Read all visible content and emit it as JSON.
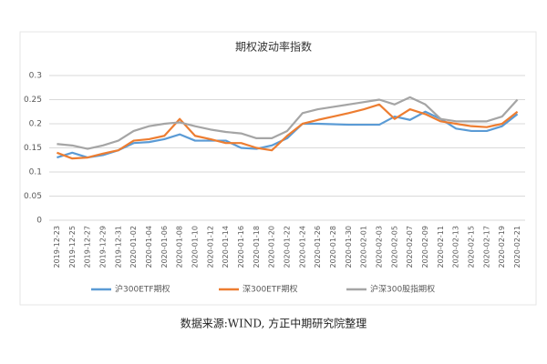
{
  "chart_data": {
    "type": "line",
    "title": "期权波动率指数",
    "categories": [
      "2019-12-23",
      "2019-12-25",
      "2019-12-27",
      "2019-12-29",
      "2019-12-31",
      "2020-01-02",
      "2020-01-04",
      "2020-01-06",
      "2020-01-08",
      "2020-01-10",
      "2020-01-12",
      "2020-01-14",
      "2020-01-16",
      "2020-01-18",
      "2020-01-20",
      "2020-01-22",
      "2020-01-24",
      "2020-01-26",
      "2020-01-28",
      "2020-01-30",
      "2020-02-01",
      "2020-02-03",
      "2020-02-05",
      "2020-02-07",
      "2020-02-09",
      "2020-02-11",
      "2020-02-13",
      "2020-02-15",
      "2020-02-17",
      "2020-02-19",
      "2020-02-21"
    ],
    "series": [
      {
        "name": "沪300ETF期权",
        "color": "#5b9bd5",
        "values": [
          0.13,
          0.14,
          0.13,
          0.135,
          0.145,
          0.16,
          0.162,
          0.168,
          0.178,
          0.165,
          0.165,
          0.165,
          0.15,
          0.148,
          0.155,
          0.17,
          0.2,
          0.2,
          0.199,
          0.198,
          0.198,
          0.198,
          0.215,
          0.208,
          0.225,
          0.21,
          0.19,
          0.185,
          0.185,
          0.195,
          0.22
        ]
      },
      {
        "name": "深300ETF期权",
        "color": "#ed7d31",
        "values": [
          0.14,
          0.128,
          0.13,
          0.138,
          0.145,
          0.165,
          0.168,
          0.175,
          0.21,
          0.175,
          0.168,
          0.16,
          0.16,
          0.15,
          0.145,
          0.175,
          0.2,
          0.208,
          0.215,
          0.222,
          0.23,
          0.24,
          0.21,
          0.23,
          0.22,
          0.205,
          0.2,
          0.195,
          0.193,
          0.2,
          0.225
        ]
      },
      {
        "name": "沪深300股指期权",
        "color": "#a5a5a5",
        "values": [
          0.158,
          0.155,
          0.148,
          0.155,
          0.165,
          0.185,
          0.195,
          0.2,
          0.203,
          0.195,
          0.188,
          0.183,
          0.18,
          0.17,
          0.17,
          0.185,
          0.222,
          0.23,
          0.235,
          0.24,
          0.245,
          0.25,
          0.24,
          0.255,
          0.24,
          0.21,
          0.205,
          0.205,
          0.205,
          0.215,
          0.25
        ]
      }
    ],
    "ylim": [
      0,
      0.3
    ],
    "yticks": [
      0,
      0.05,
      0.1,
      0.15,
      0.2,
      0.25,
      0.3
    ],
    "grid": true,
    "legend": "bottom",
    "source": "数据来源:WIND, 方正中期研究院整理"
  }
}
